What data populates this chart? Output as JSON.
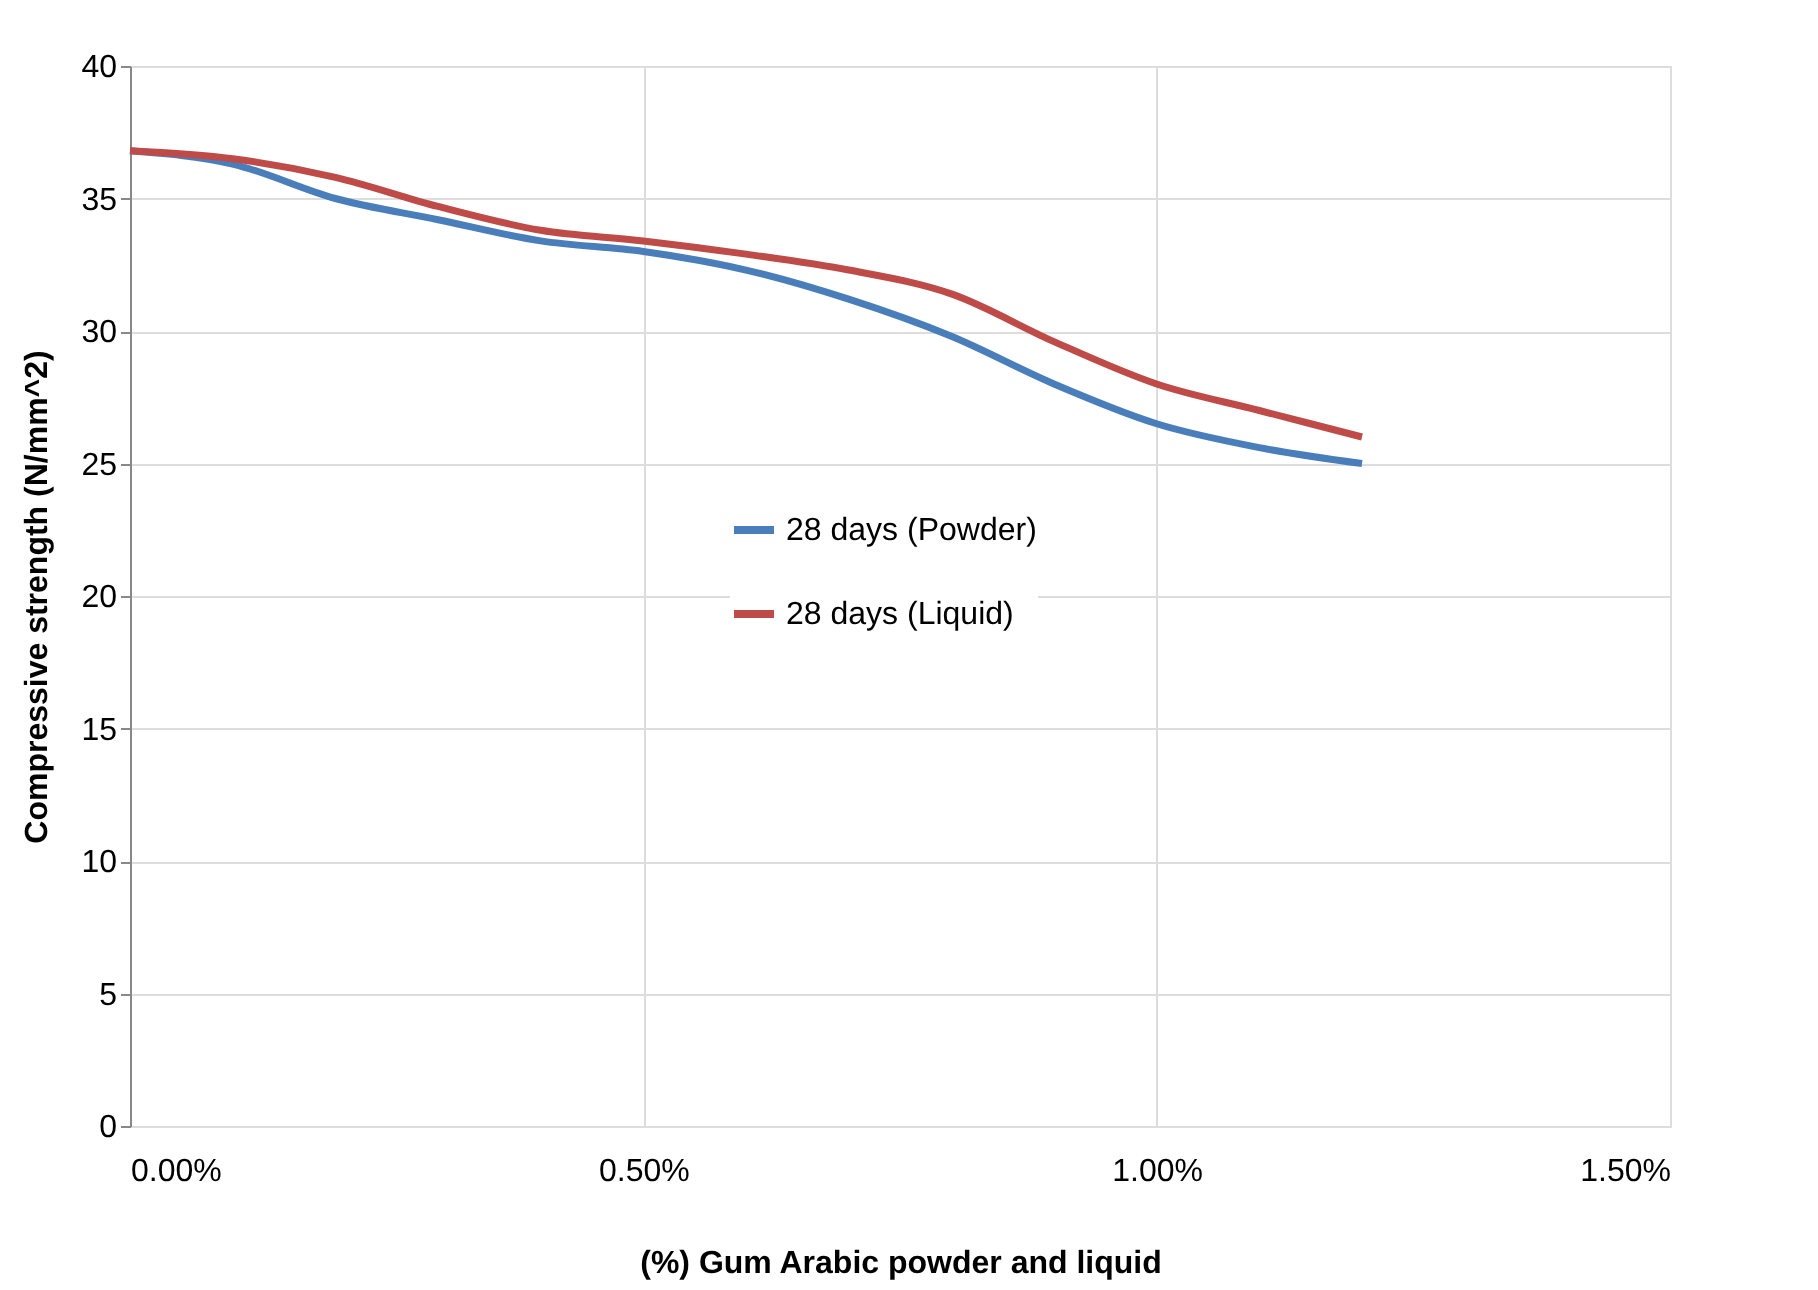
{
  "chart_data": {
    "type": "line",
    "xlabel": "(%) Gum Arabic powder and liquid",
    "ylabel": "Compressive strength (N/mm^2)",
    "x": [
      0,
      0.1,
      0.2,
      0.3,
      0.4,
      0.5,
      0.6,
      0.7,
      0.8,
      0.9,
      1.0,
      1.1,
      1.2
    ],
    "series": [
      {
        "name": "28 days (Powder)",
        "color": "#4a7ebb",
        "values": [
          36.8,
          36.3,
          35.0,
          34.2,
          33.4,
          33.0,
          32.3,
          31.2,
          29.8,
          28.0,
          26.5,
          25.6,
          25.0
        ]
      },
      {
        "name": "28 days (Liquid)",
        "color": "#be4b48",
        "values": [
          36.8,
          36.5,
          35.8,
          34.7,
          33.8,
          33.4,
          32.9,
          32.3,
          31.4,
          29.6,
          28.0,
          27.0,
          26.0
        ]
      }
    ],
    "xlim": [
      0,
      1.5
    ],
    "xticks": [
      {
        "value": 0,
        "label": "0.00%"
      },
      {
        "value": 0.5,
        "label": "0.50%"
      },
      {
        "value": 1.0,
        "label": "1.00%"
      },
      {
        "value": 1.5,
        "label": "1.50%"
      }
    ],
    "ylim": [
      0,
      40
    ],
    "yticks": [
      0,
      5,
      10,
      15,
      20,
      25,
      30,
      35,
      40
    ],
    "grid": true,
    "legend": "center",
    "marker": "none",
    "line_style": "solid"
  }
}
